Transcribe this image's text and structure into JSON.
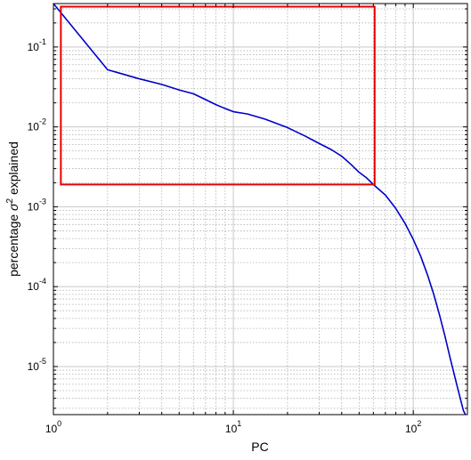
{
  "chart_data": {
    "type": "line",
    "title": "",
    "xlabel": "PC",
    "ylabel": {
      "before": "percentage ",
      "symbol": "σ",
      "superscript": "2",
      "after": " explained"
    },
    "xscale": "log",
    "yscale": "log",
    "xlim": [
      1,
      200
    ],
    "ylim": [
      2.5e-06,
      0.35
    ],
    "grid": true,
    "legend": "none",
    "x_tick_labels": [
      {
        "base": "10",
        "exp": "0",
        "value": 1
      },
      {
        "base": "10",
        "exp": "1",
        "value": 10
      },
      {
        "base": "10",
        "exp": "2",
        "value": 100
      }
    ],
    "y_tick_labels": [
      {
        "base": "10",
        "exp": "-5",
        "value": 1e-05
      },
      {
        "base": "10",
        "exp": "-4",
        "value": 0.0001
      },
      {
        "base": "10",
        "exp": "-3",
        "value": 0.001
      },
      {
        "base": "10",
        "exp": "-2",
        "value": 0.01
      },
      {
        "base": "10",
        "exp": "-1",
        "value": 0.1
      }
    ],
    "series": [
      {
        "color": "#0000c8",
        "points": [
          [
            1,
            0.35
          ],
          [
            2,
            0.052
          ],
          [
            3,
            0.04
          ],
          [
            4,
            0.034
          ],
          [
            5,
            0.029
          ],
          [
            6,
            0.026
          ],
          [
            7,
            0.022
          ],
          [
            8,
            0.019
          ],
          [
            9,
            0.017
          ],
          [
            10,
            0.0155
          ],
          [
            12,
            0.0145
          ],
          [
            15,
            0.0125
          ],
          [
            20,
            0.0098
          ],
          [
            25,
            0.0077
          ],
          [
            30,
            0.0062
          ],
          [
            35,
            0.0052
          ],
          [
            40,
            0.0043
          ],
          [
            45,
            0.0034
          ],
          [
            50,
            0.0027
          ],
          [
            55,
            0.0023
          ],
          [
            60,
            0.0019
          ],
          [
            70,
            0.0014
          ],
          [
            80,
            0.00095
          ],
          [
            90,
            0.00062
          ],
          [
            100,
            0.00039
          ],
          [
            110,
            0.00024
          ],
          [
            120,
            0.00014
          ],
          [
            130,
            8e-05
          ],
          [
            140,
            4.4e-05
          ],
          [
            150,
            2.4e-05
          ],
          [
            160,
            1.3e-05
          ],
          [
            170,
            7.5e-06
          ],
          [
            180,
            4.5e-06
          ],
          [
            190,
            2.8e-06
          ],
          [
            195,
            2.5e-06
          ]
        ]
      }
    ],
    "annotations": [
      {
        "type": "rectangle",
        "color": "#e60000",
        "x": [
          1.1,
          61
        ],
        "y": [
          0.0019,
          0.32
        ]
      }
    ]
  }
}
